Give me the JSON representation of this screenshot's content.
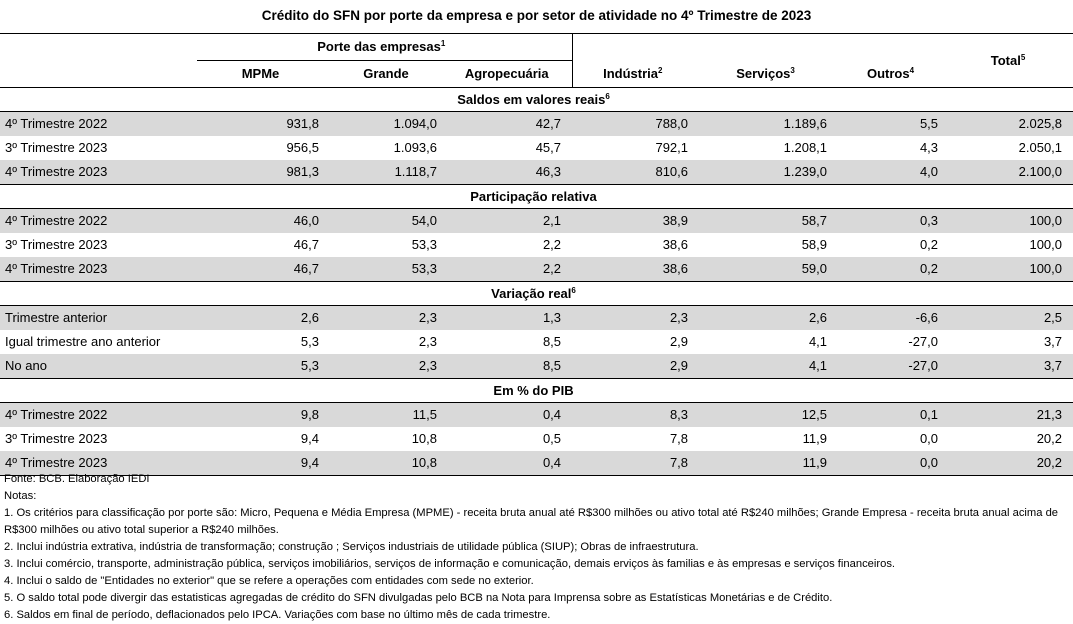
{
  "title": "Crédito do SFN  por porte da empresa e por setor de atividade no 4º Trimestre de 2023",
  "header": {
    "porte_group": "Porte das empresas",
    "porte_group_sup": "1",
    "total": "Total",
    "total_sup": "5",
    "cols": [
      {
        "label": "MPMe",
        "sup": ""
      },
      {
        "label": "Grande",
        "sup": ""
      },
      {
        "label": "Agropecuária",
        "sup": ""
      },
      {
        "label": "Indústria",
        "sup": "2"
      },
      {
        "label": "Serviços",
        "sup": "3"
      },
      {
        "label": "Outros",
        "sup": "4"
      }
    ]
  },
  "sections": [
    {
      "title": "Saldos em valores reais",
      "sup": "6",
      "rows": [
        {
          "label": "4º Trimestre 2022",
          "values": [
            "931,8",
            "1.094,0",
            "42,7",
            "788,0",
            "1.189,6",
            "5,5",
            "2.025,8"
          ]
        },
        {
          "label": "3º Trimestre 2023",
          "values": [
            "956,5",
            "1.093,6",
            "45,7",
            "792,1",
            "1.208,1",
            "4,3",
            "2.050,1"
          ]
        },
        {
          "label": "4º Trimestre 2023",
          "values": [
            "981,3",
            "1.118,7",
            "46,3",
            "810,6",
            "1.239,0",
            "4,0",
            "2.100,0"
          ]
        }
      ]
    },
    {
      "title": "Participação relativa",
      "sup": "",
      "rows": [
        {
          "label": "4º Trimestre 2022",
          "values": [
            "46,0",
            "54,0",
            "2,1",
            "38,9",
            "58,7",
            "0,3",
            "100,0"
          ]
        },
        {
          "label": "3º Trimestre 2023",
          "values": [
            "46,7",
            "53,3",
            "2,2",
            "38,6",
            "58,9",
            "0,2",
            "100,0"
          ]
        },
        {
          "label": "4º Trimestre 2023",
          "values": [
            "46,7",
            "53,3",
            "2,2",
            "38,6",
            "59,0",
            "0,2",
            "100,0"
          ]
        }
      ]
    },
    {
      "title": "Variação real",
      "sup": "6",
      "rows": [
        {
          "label": "Trimestre anterior",
          "values": [
            "2,6",
            "2,3",
            "1,3",
            "2,3",
            "2,6",
            "-6,6",
            "2,5"
          ]
        },
        {
          "label": "Igual trimestre ano anterior",
          "values": [
            "5,3",
            "2,3",
            "8,5",
            "2,9",
            "4,1",
            "-27,0",
            "3,7"
          ]
        },
        {
          "label": "No ano",
          "values": [
            "5,3",
            "2,3",
            "8,5",
            "2,9",
            "4,1",
            "-27,0",
            "3,7"
          ]
        }
      ]
    },
    {
      "title": "Em % do PIB",
      "sup": "",
      "rows": [
        {
          "label": "4º Trimestre 2022",
          "values": [
            "9,8",
            "11,5",
            "0,4",
            "8,3",
            "12,5",
            "0,1",
            "21,3"
          ]
        },
        {
          "label": "3º Trimestre 2023",
          "values": [
            "9,4",
            "10,8",
            "0,5",
            "7,8",
            "11,9",
            "0,0",
            "20,2"
          ]
        },
        {
          "label": "4º Trimestre 2023",
          "values": [
            "9,4",
            "10,8",
            "0,4",
            "7,8",
            "11,9",
            "0,0",
            "20,2"
          ]
        }
      ]
    }
  ],
  "notes": {
    "source": "Fonte: BCB. Elaboração IEDI",
    "heading": "Notas:",
    "items": [
      "1.  Os critérios para classificação por porte são: Micro, Pequena e Média Empresa (MPME) - receita bruta anual até R$300 milhões ou ativo total até R$240 milhões; Grande Empresa - receita bruta anual acima de R$300 milhões ou ativo total superior a R$240 milhões.",
      "2.  Inclui indústria extrativa, indústria de transformação; construção ; Serviços industriais de utilidade pública (SIUP); Obras de infraestrutura.",
      "3. Inclui comércio, transporte, administração pública, serviços imobiliários, serviços de informação e comunicação, demais erviços às familias  e às empresas e serviços financeiros.",
      "4. Inclui o saldo de \"Entidades no exterior\" que se refere a operações com entidades com sede no exterior.",
      "5. O saldo total pode divergir das estatisticas agregadas de crédito do SFN divulgadas pelo BCB na Nota para Imprensa sobre as Estatísticas Monetárias e de Crédito.",
      "6. Saldos em final de período, deflacionados pelo IPCA. Variações com base no último mês de cada trimestre."
    ]
  }
}
